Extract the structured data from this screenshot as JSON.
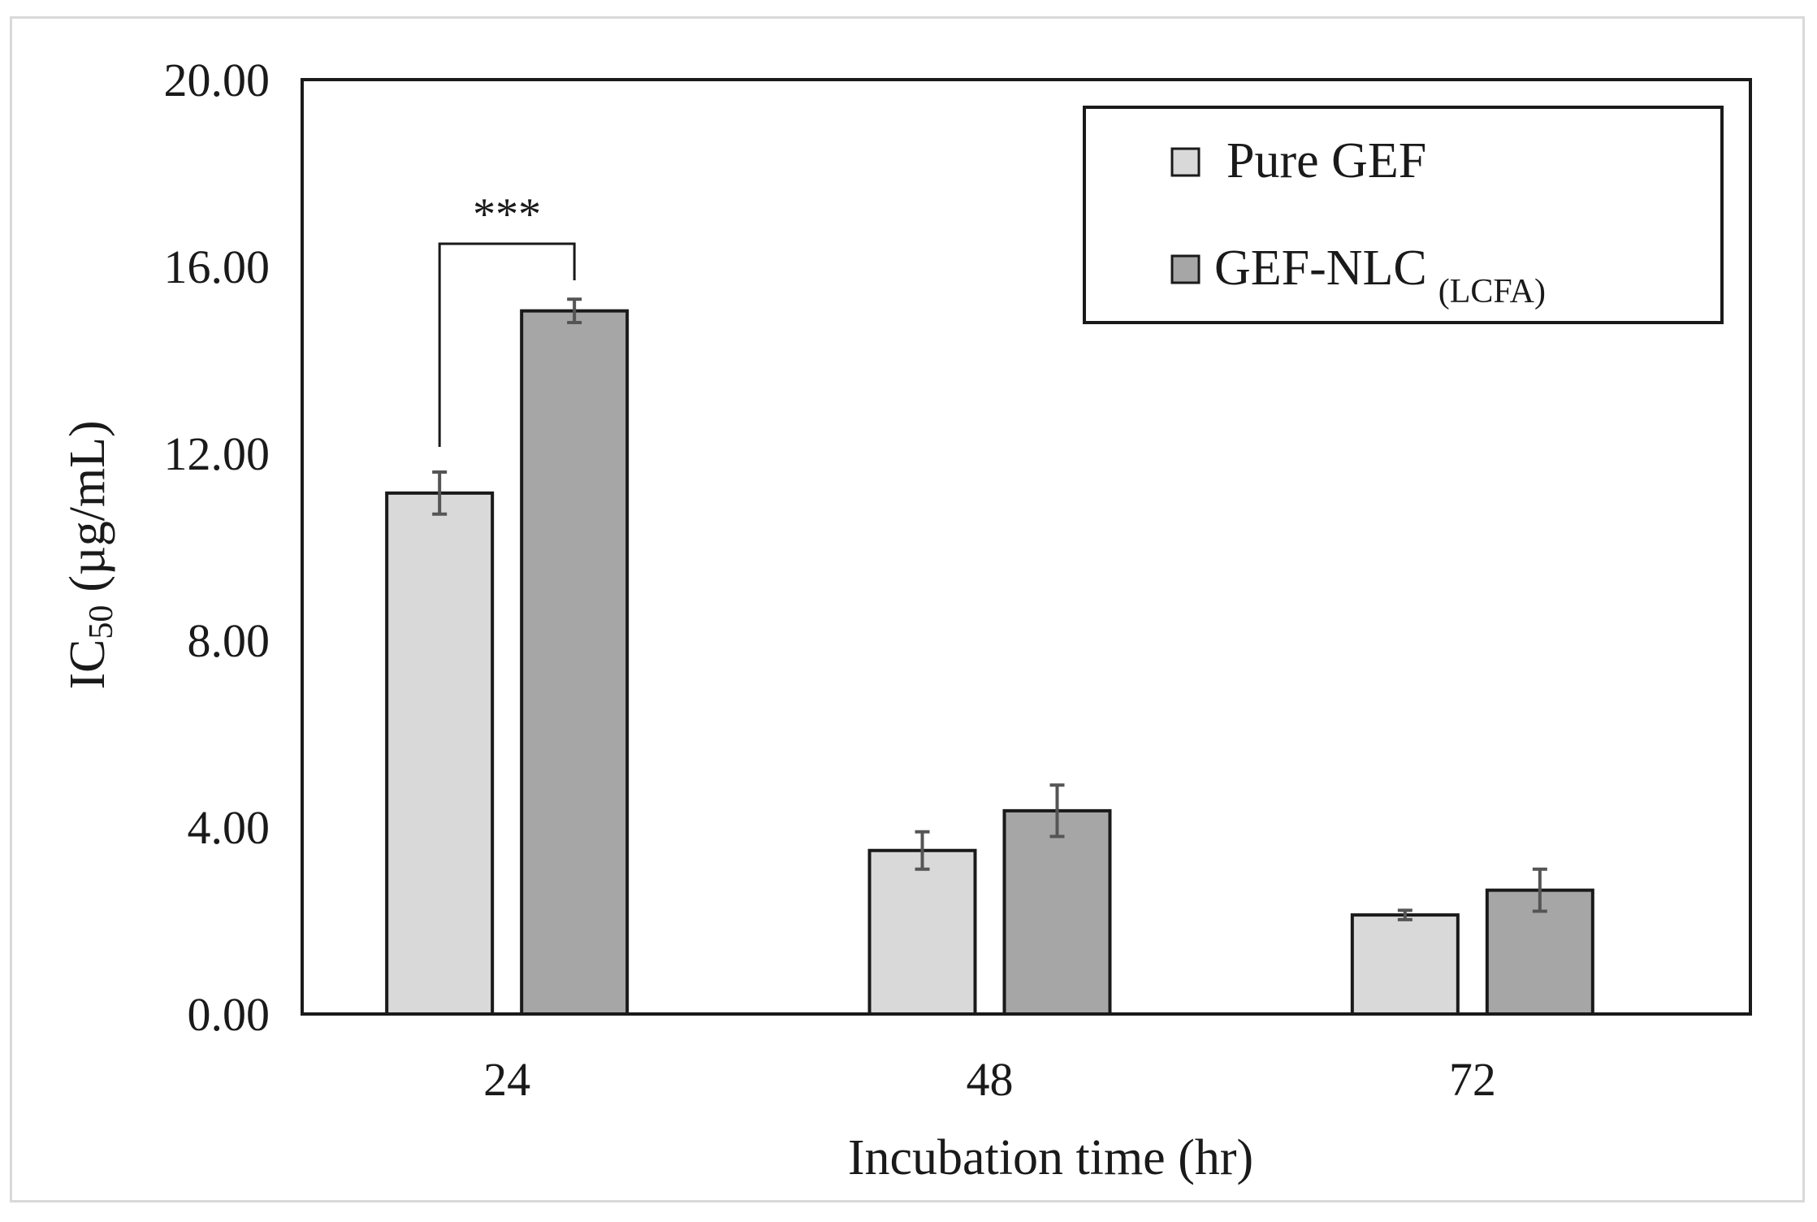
{
  "chart_data": {
    "type": "bar",
    "categories": [
      "24",
      "48",
      "72"
    ],
    "series": [
      {
        "name": "Pure GEF",
        "color": "#d9d9d9",
        "values": [
          11.15,
          3.5,
          2.12
        ],
        "errors": [
          0.45,
          0.4,
          0.1
        ]
      },
      {
        "name": "GEF-NLC",
        "name_subscript": "(LCFA)",
        "color": "#a6a6a6",
        "values": [
          15.05,
          4.35,
          2.65
        ],
        "errors": [
          0.25,
          0.55,
          0.45
        ]
      }
    ],
    "ylim": [
      0,
      20
    ],
    "yticks": [
      "0.00",
      "4.00",
      "8.00",
      "12.00",
      "16.00",
      "20.00"
    ],
    "ytick_values": [
      0,
      4,
      8,
      12,
      16,
      20
    ],
    "xlabel": "Incubation time (hr)",
    "ylabel_main": "IC",
    "ylabel_sub": "50",
    "ylabel_units": "(µg/mL)",
    "legend_position": "top-right",
    "significance": {
      "category": "24",
      "label": "***",
      "between": [
        "Pure GEF",
        "GEF-NLC"
      ]
    }
  }
}
